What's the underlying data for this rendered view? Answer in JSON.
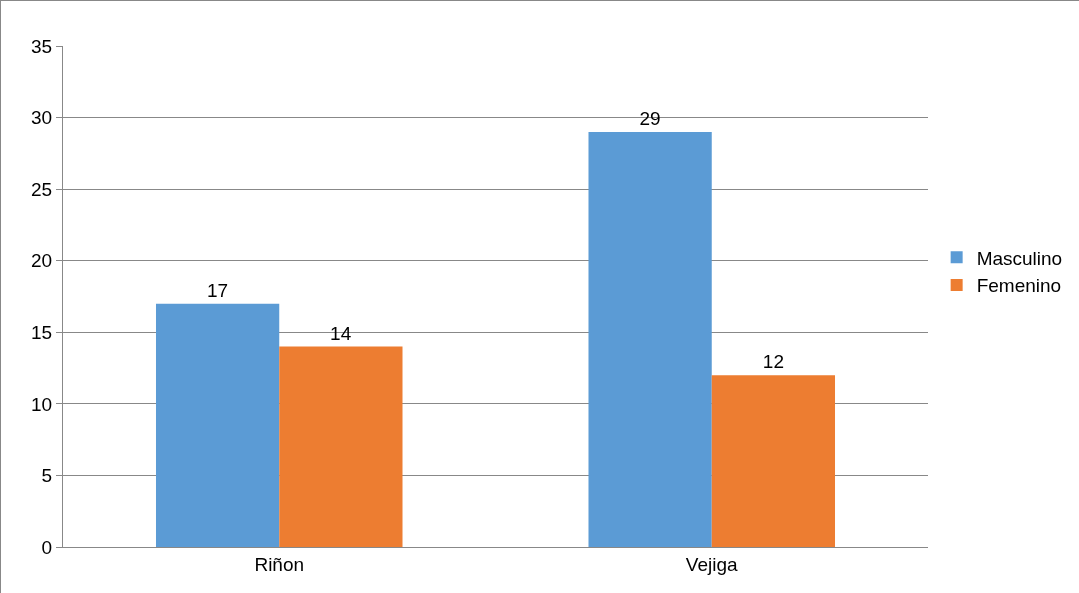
{
  "chart_data": {
    "type": "bar",
    "categories": [
      "Riñon",
      "Vejiga"
    ],
    "series": [
      {
        "name": "Masculino",
        "color": "#5b9bd5",
        "values": [
          17,
          29
        ]
      },
      {
        "name": "Femenino",
        "color": "#ed7d31",
        "values": [
          14,
          12
        ]
      }
    ],
    "ylim": [
      0,
      35
    ],
    "yticks": [
      0,
      5,
      10,
      15,
      20,
      25,
      30,
      35
    ],
    "grid": "y",
    "legend": "right",
    "data_labels": true
  }
}
